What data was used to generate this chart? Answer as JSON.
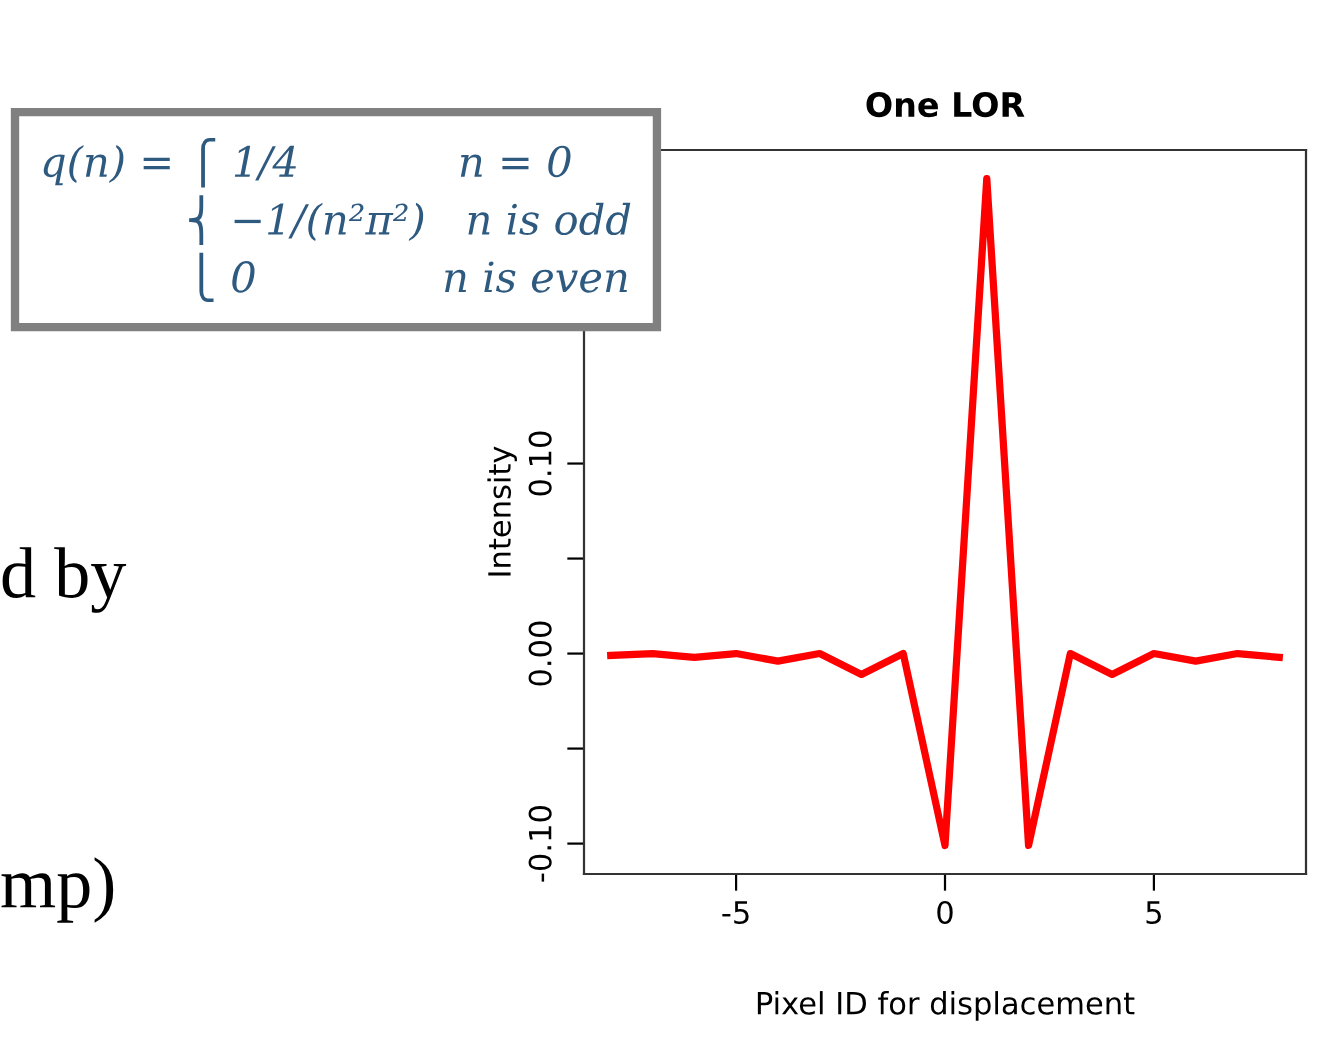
{
  "chart_data": {
    "type": "line",
    "title": "One LOR",
    "xlabel": "Pixel ID for displacement",
    "ylabel": "Intensity",
    "x": [
      -8,
      -7,
      -6,
      -5,
      -4,
      -3,
      -2,
      -1,
      0,
      1,
      2,
      3,
      4,
      5,
      6,
      7,
      8
    ],
    "series": [
      {
        "color": "#ff0000",
        "values": [
          -0.001,
          0,
          -0.002,
          0,
          -0.004,
          0,
          -0.011,
          0,
          -0.101,
          0.25,
          -0.101,
          0,
          -0.011,
          0,
          -0.004,
          0,
          -0.002
        ]
      }
    ],
    "xlim": [
      -8.64,
      8.64
    ],
    "ylim": [
      -0.116,
      0.265
    ],
    "xticks": [
      -5,
      0,
      5
    ],
    "yticks": [
      {
        "value": -0.1,
        "label": "-0.10"
      },
      {
        "value": -0.05,
        "label": null
      },
      {
        "value": 0,
        "label": "0.00"
      },
      {
        "value": 0.05,
        "label": null
      },
      {
        "value": 0.1,
        "label": "0.10"
      }
    ],
    "grid": false,
    "legend": false,
    "marker": "none",
    "line_style": "solid",
    "annotations": [
      "q(n) = ⎧ 1/4            n = 0\n           ⎨ −1/(n²π²)   n is odd\n           ⎩ 0              n is even",
      "d by",
      "mp)"
    ]
  }
}
